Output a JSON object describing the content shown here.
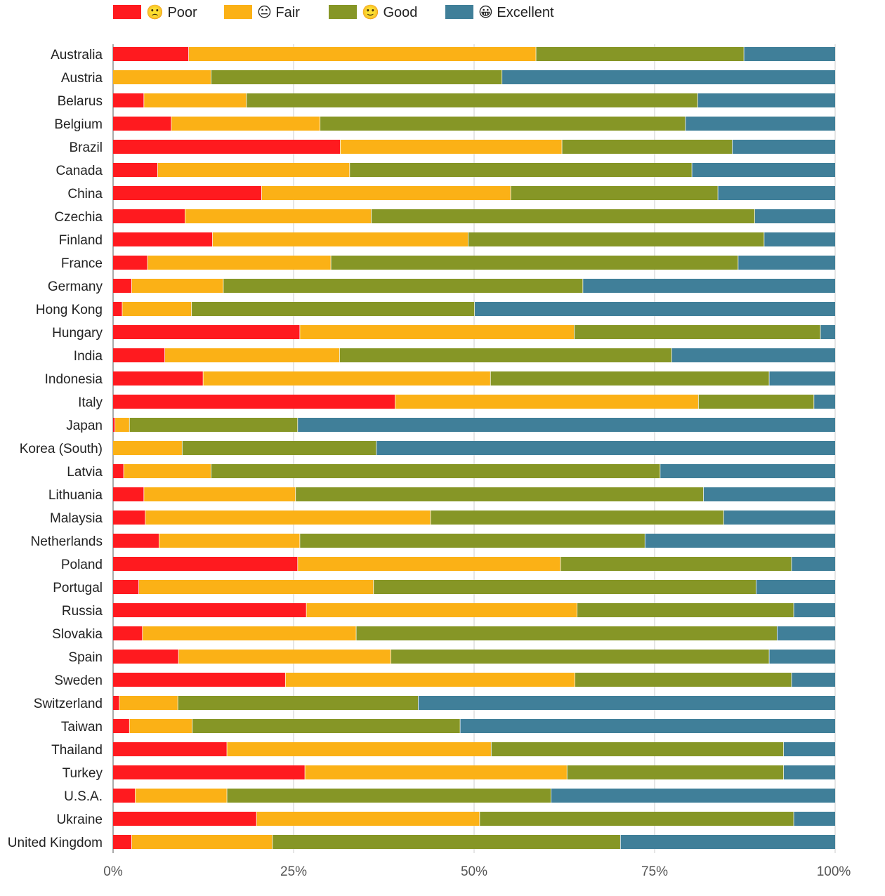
{
  "chart_data": {
    "type": "bar",
    "orientation": "horizontal",
    "stacked": true,
    "normalized": true,
    "title": "",
    "xlabel": "",
    "ylabel": "",
    "xlim": [
      0,
      100
    ],
    "x_ticks": [
      "0%",
      "25%",
      "50%",
      "75%",
      "100%"
    ],
    "grid": "vertical",
    "legend_position": "top-left",
    "categories": [
      "Australia",
      "Austria",
      "Belarus",
      "Belgium",
      "Brazil",
      "Canada",
      "China",
      "Czechia",
      "Finland",
      "France",
      "Germany",
      "Hong Kong",
      "Hungary",
      "India",
      "Indonesia",
      "Italy",
      "Japan",
      "Korea (South)",
      "Latvia",
      "Lithuania",
      "Malaysia",
      "Netherlands",
      "Poland",
      "Portugal",
      "Russia",
      "Slovakia",
      "Spain",
      "Sweden",
      "Switzerland",
      "Taiwan",
      "Thailand",
      "Turkey",
      "U.S.A.",
      "Ukraine",
      "United Kingdom"
    ],
    "series": [
      {
        "name": "🙁 Poor",
        "color": "#ff1a1f",
        "values": [
          10.5,
          0,
          4.3,
          8.1,
          31.5,
          6.2,
          20.6,
          10.0,
          13.8,
          4.8,
          2.6,
          1.3,
          25.9,
          7.2,
          12.5,
          39.1,
          0.3,
          0,
          1.5,
          4.3,
          4.5,
          6.4,
          25.6,
          3.6,
          26.8,
          4.1,
          9.1,
          23.9,
          0.9,
          2.3,
          15.8,
          26.6,
          3.1,
          19.9,
          2.6
        ]
      },
      {
        "name": "😐 Fair",
        "color": "#fbb116",
        "values": [
          48.1,
          13.6,
          14.2,
          20.6,
          30.7,
          26.6,
          34.5,
          25.8,
          35.4,
          25.4,
          12.7,
          9.6,
          38.0,
          24.2,
          39.8,
          42.0,
          2.0,
          9.6,
          12.1,
          21.0,
          39.5,
          19.5,
          36.4,
          32.5,
          37.5,
          29.6,
          29.4,
          40.1,
          8.1,
          8.7,
          36.6,
          36.3,
          12.7,
          30.9,
          19.5
        ]
      },
      {
        "name": "🙂 Good",
        "color": "#869626",
        "values": [
          28.8,
          40.3,
          62.5,
          50.6,
          23.6,
          47.4,
          28.7,
          53.1,
          41.0,
          56.4,
          49.8,
          39.2,
          34.1,
          46.0,
          38.6,
          16.0,
          23.3,
          26.9,
          62.2,
          56.5,
          40.6,
          47.8,
          32.0,
          53.0,
          30.0,
          58.3,
          52.4,
          30.0,
          33.3,
          37.1,
          40.5,
          30.0,
          44.9,
          43.5,
          48.2
        ]
      },
      {
        "name": "😀 Excellent",
        "color": "#407f99",
        "values": [
          12.6,
          46.1,
          19.0,
          20.7,
          14.2,
          19.8,
          16.2,
          11.1,
          9.8,
          13.4,
          34.9,
          49.9,
          2.0,
          22.6,
          9.1,
          2.9,
          74.4,
          63.5,
          24.2,
          18.2,
          15.4,
          26.3,
          6.0,
          10.9,
          5.7,
          8.0,
          9.1,
          6.0,
          57.7,
          51.9,
          7.1,
          7.1,
          39.3,
          5.7,
          29.7
        ]
      }
    ]
  }
}
